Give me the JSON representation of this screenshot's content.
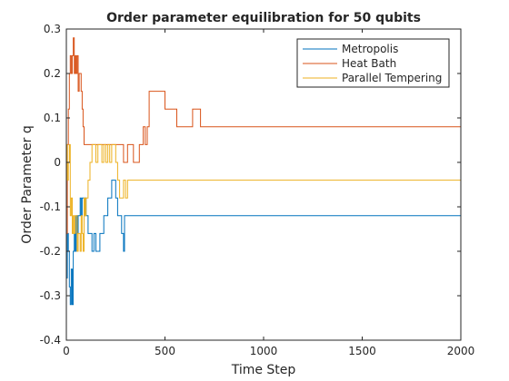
{
  "chart_data": {
    "type": "line",
    "title": "Order parameter equilibration for 50 qubits",
    "xlabel": "Time Step",
    "ylabel": "Order Parameter q",
    "xlim": [
      0,
      2000
    ],
    "ylim": [
      -0.4,
      0.3
    ],
    "xticks": [
      0,
      500,
      1000,
      1500,
      2000
    ],
    "yticks": [
      -0.4,
      -0.3,
      -0.2,
      -0.1,
      0,
      0.1,
      0.2,
      0.3
    ],
    "xtick_labels": [
      "0",
      "500",
      "1000",
      "1500",
      "2000"
    ],
    "ytick_labels": [
      "-0.4",
      "-0.3",
      "-0.2",
      "-0.1",
      "0",
      "0.1",
      "0.2",
      "0.3"
    ],
    "grid": false,
    "legend_position": "top-right",
    "series": [
      {
        "name": "Metropolis",
        "color": "#0072BD",
        "x": [
          0,
          5,
          10,
          15,
          20,
          25,
          30,
          35,
          40,
          45,
          50,
          55,
          60,
          65,
          70,
          75,
          80,
          85,
          90,
          95,
          100,
          110,
          120,
          130,
          140,
          150,
          160,
          170,
          180,
          190,
          200,
          210,
          220,
          230,
          240,
          250,
          260,
          270,
          280,
          285,
          290,
          295,
          300,
          2000
        ],
        "y": [
          -0.26,
          -0.16,
          -0.2,
          -0.28,
          -0.32,
          -0.24,
          -0.32,
          -0.2,
          -0.16,
          -0.2,
          -0.12,
          -0.16,
          -0.12,
          -0.12,
          -0.08,
          -0.12,
          -0.08,
          -0.08,
          -0.12,
          -0.08,
          -0.12,
          -0.16,
          -0.16,
          -0.2,
          -0.16,
          -0.2,
          -0.2,
          -0.16,
          -0.16,
          -0.12,
          -0.12,
          -0.08,
          -0.08,
          -0.04,
          -0.04,
          -0.08,
          -0.12,
          -0.12,
          -0.16,
          -0.16,
          -0.2,
          -0.12,
          -0.12,
          -0.12
        ]
      },
      {
        "name": "Heat Bath",
        "color": "#D95319",
        "x": [
          0,
          5,
          10,
          15,
          20,
          25,
          30,
          35,
          40,
          45,
          50,
          55,
          60,
          65,
          70,
          75,
          80,
          85,
          90,
          95,
          100,
          110,
          120,
          130,
          150,
          170,
          190,
          210,
          230,
          250,
          270,
          290,
          300,
          310,
          320,
          330,
          340,
          350,
          360,
          370,
          380,
          390,
          400,
          410,
          420,
          440,
          460,
          480,
          500,
          520,
          540,
          560,
          580,
          600,
          620,
          640,
          660,
          680,
          700,
          2000
        ],
        "y": [
          -0.16,
          0.04,
          0.12,
          0.2,
          0.24,
          0.2,
          0.24,
          0.28,
          0.2,
          0.24,
          0.2,
          0.24,
          0.16,
          0.2,
          0.2,
          0.16,
          0.12,
          0.08,
          0.04,
          0.04,
          0.04,
          0.04,
          0.04,
          0.04,
          0.04,
          0.04,
          0.04,
          0.04,
          0.04,
          0.04,
          0.04,
          0.0,
          0.0,
          0.04,
          0.04,
          0.04,
          0.0,
          0.0,
          0.0,
          0.04,
          0.04,
          0.08,
          0.04,
          0.08,
          0.16,
          0.16,
          0.16,
          0.16,
          0.12,
          0.12,
          0.12,
          0.08,
          0.08,
          0.08,
          0.08,
          0.12,
          0.12,
          0.08,
          0.08,
          0.08
        ]
      },
      {
        "name": "Parallel Tempering",
        "color": "#EDB120",
        "x": [
          0,
          5,
          10,
          15,
          20,
          25,
          30,
          35,
          40,
          45,
          50,
          55,
          60,
          65,
          70,
          75,
          80,
          85,
          90,
          95,
          100,
          110,
          120,
          130,
          140,
          150,
          160,
          170,
          180,
          190,
          200,
          210,
          220,
          230,
          240,
          250,
          260,
          270,
          280,
          290,
          300,
          310,
          320,
          2000
        ],
        "y": [
          0.04,
          -0.04,
          0.0,
          0.04,
          -0.12,
          -0.08,
          -0.16,
          -0.12,
          -0.16,
          -0.12,
          -0.12,
          -0.2,
          -0.16,
          -0.16,
          -0.2,
          -0.12,
          -0.16,
          -0.2,
          -0.08,
          -0.12,
          -0.08,
          -0.04,
          0.0,
          0.04,
          0.04,
          0.0,
          0.04,
          0.04,
          0.0,
          0.04,
          0.0,
          0.04,
          0.0,
          0.04,
          0.04,
          0.0,
          -0.04,
          -0.08,
          -0.08,
          -0.04,
          -0.08,
          -0.04,
          -0.04,
          -0.04
        ]
      }
    ]
  }
}
